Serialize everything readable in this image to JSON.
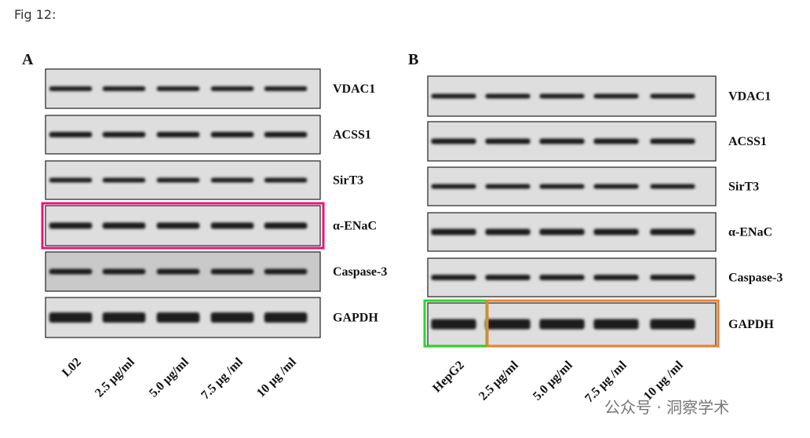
{
  "caption": "Fig 12:",
  "panels": [
    {
      "label": "A",
      "rows": [
        "VDAC1",
        "ACSS1",
        "SirT3",
        "α-ENaC",
        "Caspase-3",
        "GAPDH"
      ],
      "lanes": [
        "L02",
        "2.5 μg/ml",
        "5.0 μg/ml",
        "7.5 μg /ml",
        "10 μg /ml"
      ]
    },
    {
      "label": "B",
      "rows": [
        "VDAC1",
        "ACSS1",
        "SirT3",
        "α-ENaC",
        "Caspase-3",
        "GAPDH"
      ],
      "lanes": [
        "HepG2",
        "2.5 μg/ml",
        "5.0 μg/ml",
        "7.5 μg /ml",
        "10 μg /ml"
      ]
    }
  ],
  "watermark": "公众号 · 洞察学术"
}
